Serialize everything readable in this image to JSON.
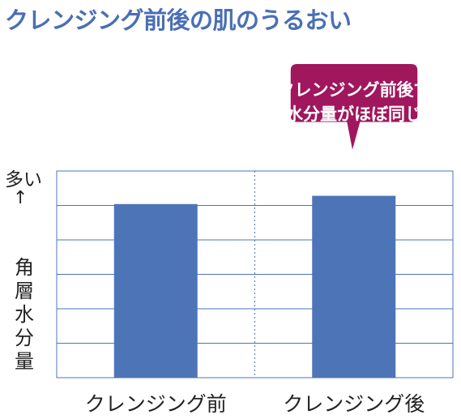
{
  "title": "クレンジング前後の肌のうるおい",
  "colors": {
    "title": "#4a6fb5",
    "bar": "#4e74b8",
    "callout": "#a0175e",
    "grid": "#4e74b8"
  },
  "chart_data": {
    "type": "bar",
    "title": "クレンジング前後の肌のうるおい",
    "categories": [
      "クレンジング前",
      "クレンジング後"
    ],
    "values": [
      0.84,
      0.88
    ],
    "ylim": [
      0,
      1
    ],
    "grid": true,
    "ylabel_top": "多い",
    "ylabel_arrow": "↑",
    "ylabel": "角層水分量",
    "annotation": {
      "lines": [
        "クレンジング前後で",
        "水分量がほぼ同じ"
      ],
      "points_to": "クレンジング後"
    }
  }
}
